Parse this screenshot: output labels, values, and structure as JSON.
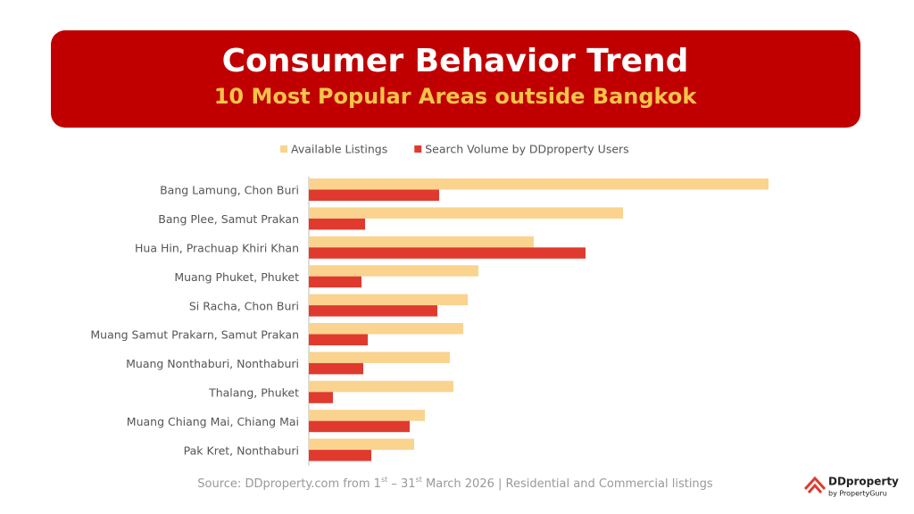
{
  "chart_data": {
    "type": "bar",
    "orientation": "horizontal",
    "title": "Consumer Behavior Trend",
    "subtitle": "10 Most Popular Areas outside Bangkok",
    "categories": [
      "Bang Lamung, Chon Buri",
      "Bang Plee, Samut Prakan",
      "Hua Hin, Prachuap Khiri Khan",
      "Muang Phuket, Phuket",
      "Si Racha, Chon Buri",
      "Muang Samut Prakarn, Samut Prakan",
      "Muang Nonthaburi, Nonthaburi",
      "Thalang, Phuket",
      "Muang Chiang Mai, Chiang Mai",
      "Pak Kret, Nonthaburi"
    ],
    "series": [
      {
        "name": "Available Listings",
        "color": "#fad38e",
        "values": [
          515,
          352,
          252,
          190,
          178,
          173,
          158,
          162,
          130,
          118
        ]
      },
      {
        "name": "Search Volume by DDproperty Users",
        "color": "#e03a2f",
        "values": [
          146,
          63,
          310,
          59,
          144,
          66,
          61,
          27,
          113,
          70
        ]
      }
    ],
    "xlim": [
      0,
      520
    ],
    "source": [
      "Source: DDproperty.com from 1",
      "st",
      "  – 31",
      "st",
      " March  2026 | Residential and Commercial listings"
    ],
    "logo": {
      "name": "DDproperty",
      "tagline": "by PropertyGuru"
    }
  }
}
